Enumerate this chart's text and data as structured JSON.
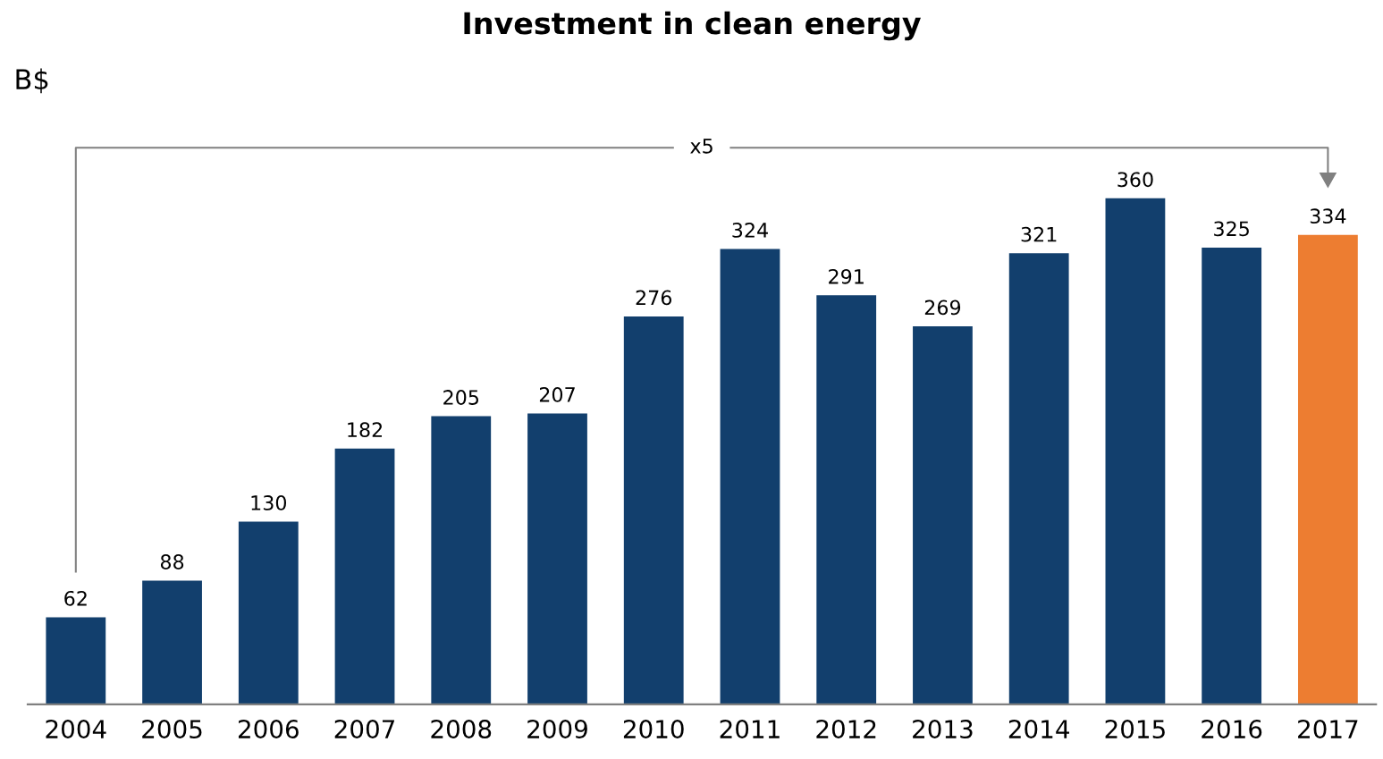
{
  "chart_data": {
    "type": "bar",
    "title": "Investment in clean energy",
    "categories": [
      "2004",
      "2005",
      "2006",
      "2007",
      "2008",
      "2009",
      "2010",
      "2011",
      "2012",
      "2013",
      "2014",
      "2015",
      "2016",
      "2017"
    ],
    "values": [
      62,
      88,
      130,
      182,
      205,
      207,
      276,
      324,
      291,
      269,
      321,
      360,
      325,
      334
    ],
    "colors": [
      "#123f6d",
      "#123f6d",
      "#123f6d",
      "#123f6d",
      "#123f6d",
      "#123f6d",
      "#123f6d",
      "#123f6d",
      "#123f6d",
      "#123f6d",
      "#123f6d",
      "#123f6d",
      "#123f6d",
      "#ed7d31"
    ],
    "data_labels": true,
    "grid": false,
    "legend": false,
    "annotations": [
      "B$",
      "x5"
    ]
  }
}
